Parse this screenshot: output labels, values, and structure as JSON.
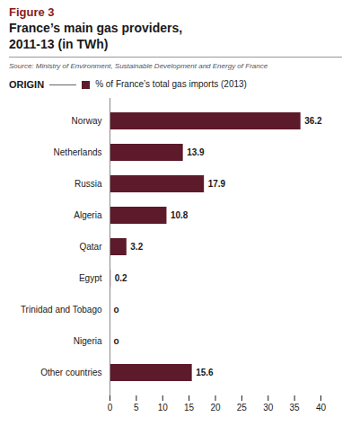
{
  "chart_data": {
    "type": "bar",
    "orientation": "horizontal",
    "title": "France’s main gas providers,",
    "subtitle": "2011-13 (in TWh)",
    "ylabel": "ORIGIN",
    "annotations": [
      "Figure 3",
      "Source: Ministry of Environment, Sustainable Development and Energy of France"
    ],
    "categories": [
      "Norway",
      "Netherlands",
      "Russia",
      "Algeria",
      "Qatar",
      "Egypt",
      "Trinidad and Tobago",
      "Nigeria",
      "Other countries"
    ],
    "series": [
      {
        "name": "% of France’s total gas imports (2013)",
        "color": "#5c1a2a",
        "values": [
          36.2,
          13.9,
          17.9,
          10.8,
          3.2,
          0.2,
          0.0,
          0.0,
          15.6
        ],
        "value_labels": [
          "36.2",
          "13.9",
          "17.9",
          "10.8",
          "3.2",
          "0.2",
          "o",
          "o",
          "15.6"
        ]
      }
    ],
    "xlim": [
      0,
      40
    ],
    "xticks": [
      0,
      5,
      10,
      15,
      20,
      25,
      30,
      35,
      40
    ],
    "data_labels": true,
    "grid": false
  }
}
